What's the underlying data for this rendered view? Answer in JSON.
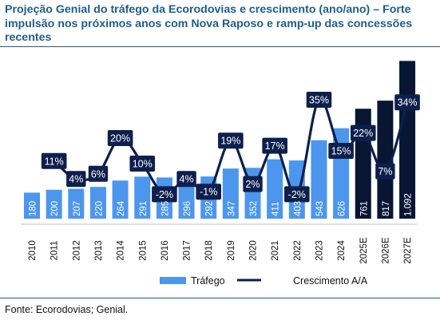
{
  "title": "Projeção Genial do tráfego da Ecorodovias e crescimento (ano/ano) – Forte impulsão nos próximos anos com Nova Raposo e ramp-up das concessões recentes",
  "source": "Fonte: Ecorodovias; Genial.",
  "colors": {
    "title": "#1f5d8e",
    "bar_actual": "#4d96ee",
    "bar_projection": "#081634",
    "line": "#0d1f4c",
    "label_box": "#0d1f4c",
    "label_text": "#ffffff"
  },
  "chart_data": {
    "type": "bar",
    "categories": [
      "2010",
      "2011",
      "2012",
      "2013",
      "2014",
      "2015",
      "2016",
      "2017",
      "2018",
      "2019",
      "2020",
      "2021",
      "2022",
      "2023",
      "2024",
      "2025E",
      "2026E",
      "2027E"
    ],
    "series": [
      {
        "name": "Tráfego",
        "type": "bar",
        "values": [
          180,
          200,
          207,
          220,
          264,
          291,
          285,
          296,
          292,
          347,
          352,
          411,
          403,
          543,
          626,
          761,
          817,
          1092
        ],
        "labels": [
          "180",
          "200",
          "207",
          "220",
          "264",
          "291",
          "285",
          "296",
          "292",
          "347",
          "352",
          "411",
          "403",
          "543",
          "626",
          "761",
          "817",
          "1.092"
        ]
      },
      {
        "name": "Crescimento A/A",
        "type": "line",
        "values": [
          null,
          11,
          4,
          6,
          20,
          10,
          -2,
          4,
          -1,
          19,
          2,
          17,
          -2,
          35,
          15,
          22,
          7,
          34
        ],
        "labels": [
          "",
          "11%",
          "4%",
          "6%",
          "20%",
          "10%",
          "-2%",
          "4%",
          "-1%",
          "19%",
          "2%",
          "17%",
          "-2%",
          "35%",
          "15%",
          "22%",
          "7%",
          "34%"
        ]
      }
    ],
    "projection_from_index": 15,
    "legend": {
      "position": "bottom",
      "items": [
        "Tráfego",
        "Crescimento A/A"
      ]
    },
    "grid": false
  }
}
